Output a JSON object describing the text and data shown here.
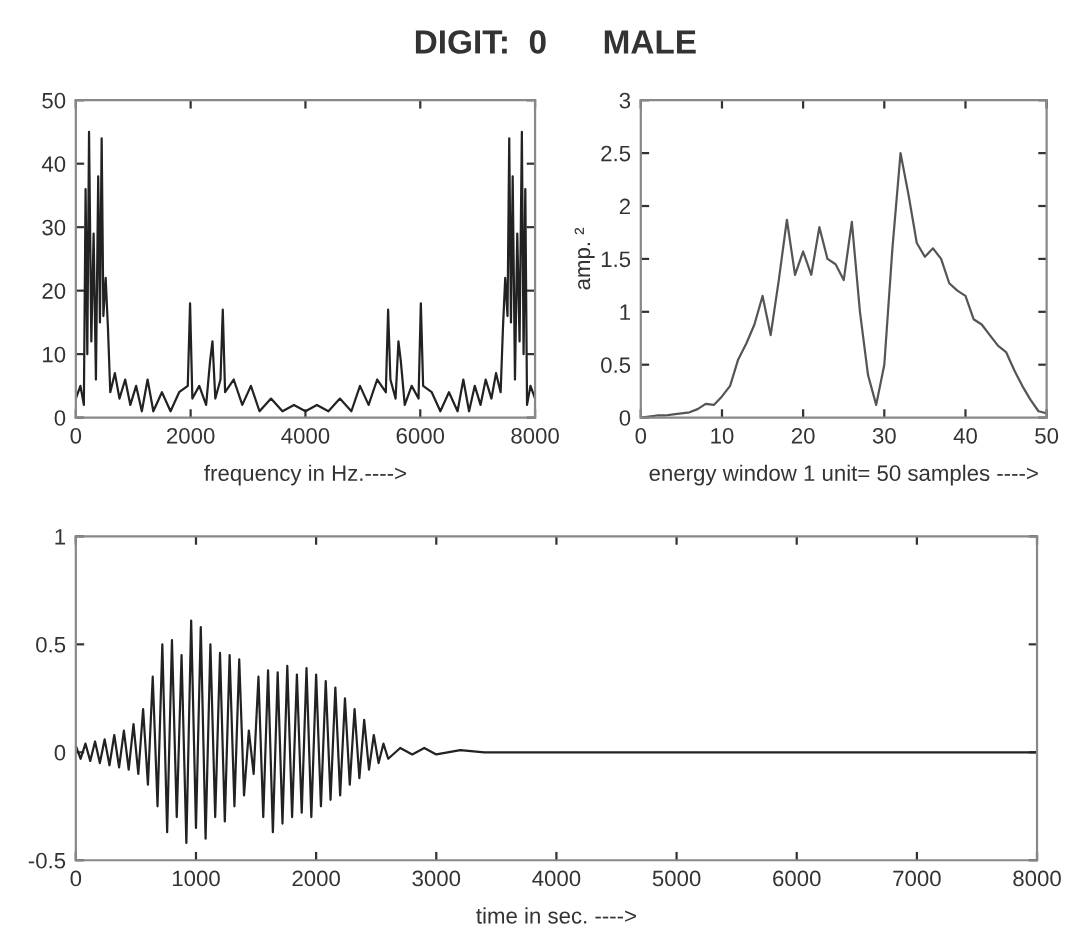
{
  "chart_data": [
    {
      "type": "line",
      "title": "DIGIT:  0      MALE",
      "xlabel": "frequency in Hz.---->",
      "xlim": [
        0,
        8000
      ],
      "ylim": [
        0,
        50
      ],
      "xticks": [
        0,
        2000,
        4000,
        6000,
        8000
      ],
      "yticks": [
        0,
        10,
        20,
        30,
        40,
        50
      ],
      "grid": false,
      "legend": false,
      "series": [
        {
          "color": "#222222",
          "x": [
            0,
            80,
            140,
            170,
            200,
            230,
            270,
            310,
            350,
            390,
            420,
            450,
            480,
            520,
            560,
            600,
            680,
            760,
            860,
            950,
            1050,
            1150,
            1250,
            1350,
            1500,
            1650,
            1800,
            1950,
            1990,
            2030,
            2150,
            2270,
            2340,
            2380,
            2430,
            2520,
            2560,
            2600,
            2750,
            2900,
            3050,
            3200,
            3400,
            3600,
            3800,
            4000,
            4200,
            4400,
            4600,
            4800,
            4950,
            5100,
            5250,
            5400,
            5440,
            5480,
            5570,
            5620,
            5660,
            5730,
            5850,
            5970,
            6010,
            6050,
            6200,
            6350,
            6500,
            6650,
            6750,
            6850,
            6950,
            7050,
            7140,
            7240,
            7320,
            7400,
            7440,
            7480,
            7520,
            7550,
            7580,
            7610,
            7650,
            7690,
            7730,
            7770,
            7800,
            7830,
            7860,
            7920,
            8000
          ],
          "values": [
            3,
            5,
            2,
            36,
            10,
            45,
            12,
            29,
            6,
            38,
            15,
            44,
            16,
            22,
            14,
            4,
            7,
            3,
            6,
            2,
            5,
            1,
            6,
            1,
            4,
            1,
            4,
            5,
            18,
            3,
            5,
            2,
            9,
            12,
            3,
            6,
            17,
            4,
            6,
            2,
            5,
            1,
            3,
            1,
            2,
            1,
            2,
            1,
            3,
            1,
            5,
            2,
            6,
            4,
            17,
            6,
            3,
            12,
            9,
            2,
            5,
            3,
            18,
            5,
            4,
            1,
            4,
            1,
            6,
            1,
            5,
            2,
            6,
            3,
            7,
            4,
            14,
            22,
            16,
            44,
            15,
            38,
            6,
            29,
            12,
            45,
            10,
            36,
            2,
            5,
            3
          ]
        }
      ]
    },
    {
      "type": "line",
      "xlabel": "energy window 1 unit= 50 samples ---->",
      "ylabel": "amp. ²",
      "xlim": [
        0,
        50
      ],
      "ylim": [
        0,
        3
      ],
      "xticks": [
        0,
        10,
        20,
        30,
        40,
        50
      ],
      "yticks": [
        0,
        0.5,
        1,
        1.5,
        2,
        2.5,
        3
      ],
      "grid": false,
      "legend": false,
      "series": [
        {
          "color": "#555555",
          "x": [
            0,
            1,
            2,
            3,
            4,
            5,
            6,
            7,
            8,
            9,
            10,
            11,
            12,
            13,
            14,
            15,
            16,
            17,
            18,
            19,
            20,
            21,
            22,
            23,
            24,
            25,
            26,
            27,
            28,
            29,
            30,
            31,
            32,
            33,
            34,
            35,
            36,
            37,
            38,
            39,
            40,
            41,
            42,
            43,
            44,
            45,
            46,
            47,
            48,
            49,
            50
          ],
          "values": [
            0,
            0.01,
            0.02,
            0.02,
            0.03,
            0.04,
            0.05,
            0.08,
            0.13,
            0.12,
            0.2,
            0.3,
            0.55,
            0.7,
            0.88,
            1.15,
            0.78,
            1.3,
            1.87,
            1.35,
            1.57,
            1.35,
            1.8,
            1.5,
            1.45,
            1.3,
            1.85,
            1.0,
            0.4,
            0.12,
            0.5,
            1.6,
            2.5,
            2.1,
            1.65,
            1.52,
            1.6,
            1.5,
            1.27,
            1.2,
            1.15,
            0.93,
            0.88,
            0.78,
            0.68,
            0.62,
            0.45,
            0.3,
            0.17,
            0.06,
            0.04
          ]
        }
      ]
    },
    {
      "type": "line",
      "xlabel": "time in sec. ---->",
      "xlim": [
        0,
        8000
      ],
      "ylim": [
        -0.5,
        1
      ],
      "xticks": [
        0,
        1000,
        2000,
        3000,
        4000,
        5000,
        6000,
        7000,
        8000
      ],
      "yticks": [
        -0.5,
        0,
        0.5,
        1
      ],
      "grid": false,
      "legend": false,
      "series": [
        {
          "color": "#222222",
          "x": [
            0,
            40,
            80,
            120,
            160,
            200,
            240,
            280,
            320,
            360,
            400,
            440,
            480,
            520,
            560,
            600,
            640,
            680,
            720,
            760,
            800,
            840,
            880,
            920,
            960,
            1000,
            1040,
            1080,
            1120,
            1160,
            1200,
            1240,
            1280,
            1320,
            1360,
            1400,
            1440,
            1480,
            1520,
            1560,
            1600,
            1640,
            1680,
            1720,
            1760,
            1800,
            1840,
            1880,
            1920,
            1960,
            2000,
            2040,
            2080,
            2120,
            2160,
            2200,
            2240,
            2280,
            2320,
            2360,
            2400,
            2440,
            2480,
            2520,
            2560,
            2600,
            2700,
            2800,
            2900,
            3000,
            3200,
            3400,
            3800,
            4000,
            8000
          ],
          "values": [
            0.03,
            -0.03,
            0.04,
            -0.04,
            0.05,
            -0.05,
            0.06,
            -0.06,
            0.08,
            -0.07,
            0.1,
            -0.08,
            0.13,
            -0.1,
            0.2,
            -0.15,
            0.35,
            -0.25,
            0.5,
            -0.37,
            0.52,
            -0.3,
            0.45,
            -0.42,
            0.61,
            -0.35,
            0.58,
            -0.4,
            0.5,
            -0.3,
            0.46,
            -0.32,
            0.45,
            -0.25,
            0.43,
            -0.2,
            0.1,
            -0.1,
            0.35,
            -0.3,
            0.38,
            -0.37,
            0.37,
            -0.33,
            0.4,
            -0.3,
            0.36,
            -0.28,
            0.39,
            -0.3,
            0.36,
            -0.25,
            0.33,
            -0.22,
            0.3,
            -0.2,
            0.25,
            -0.15,
            0.2,
            -0.12,
            0.15,
            -0.08,
            0.08,
            -0.05,
            0.04,
            -0.03,
            0.02,
            -0.01,
            0.02,
            -0.01,
            0.01,
            0,
            0,
            0,
            0
          ]
        }
      ]
    }
  ]
}
